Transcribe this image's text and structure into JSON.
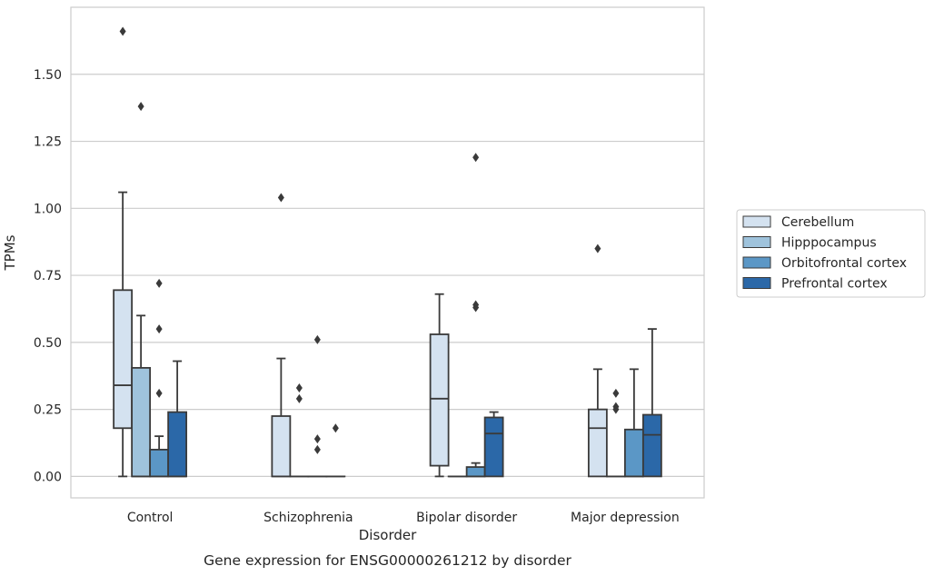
{
  "chart_data": {
    "type": "box",
    "xlabel": "Disorder",
    "ylabel": "TPMs",
    "caption": "Gene expression for ENSG00000261212 by disorder",
    "ylim": [
      -0.08,
      1.75
    ],
    "yticks": [
      0.0,
      0.25,
      0.5,
      0.75,
      1.0,
      1.25,
      1.5
    ],
    "ytick_labels": [
      "0.00",
      "0.25",
      "0.50",
      "0.75",
      "1.00",
      "1.25",
      "1.50"
    ],
    "grid": "horizontal",
    "legend_position": "right",
    "categories": [
      "Control",
      "Schizophrenia",
      "Bipolar disorder",
      "Major depression"
    ],
    "series": [
      {
        "name": "Cerebellum",
        "color": "#d4e2f0",
        "boxes": [
          {
            "whisker_low": 0.0,
            "q1": 0.18,
            "median": 0.34,
            "q3": 0.695,
            "whisker_high": 1.06,
            "outliers": [
              1.66
            ]
          },
          {
            "whisker_low": 0.0,
            "q1": 0.0,
            "median": 0.0,
            "q3": 0.225,
            "whisker_high": 0.44,
            "outliers": [
              1.04
            ]
          },
          {
            "whisker_low": 0.0,
            "q1": 0.04,
            "median": 0.29,
            "q3": 0.53,
            "whisker_high": 0.68,
            "outliers": []
          },
          {
            "whisker_low": 0.0,
            "q1": 0.0,
            "median": 0.18,
            "q3": 0.25,
            "whisker_high": 0.4,
            "outliers": [
              0.85
            ]
          }
        ]
      },
      {
        "name": "Hipppocampus",
        "color": "#9fc3dc",
        "boxes": [
          {
            "whisker_low": 0.0,
            "q1": 0.0,
            "median": 0.0,
            "q3": 0.405,
            "whisker_high": 0.6,
            "outliers": [
              1.38
            ]
          },
          {
            "whisker_low": 0.0,
            "q1": 0.0,
            "median": 0.0,
            "q3": 0.0,
            "whisker_high": 0.0,
            "outliers": [
              0.33,
              0.29
            ]
          },
          {
            "whisker_low": 0.0,
            "q1": 0.0,
            "median": 0.0,
            "q3": 0.0,
            "whisker_high": 0.0,
            "outliers": []
          },
          {
            "whisker_low": 0.0,
            "q1": 0.0,
            "median": 0.0,
            "q3": 0.0,
            "whisker_high": 0.0,
            "outliers": [
              0.31,
              0.26,
              0.25
            ]
          }
        ]
      },
      {
        "name": "Orbitofrontal cortex",
        "color": "#5b97c6",
        "boxes": [
          {
            "whisker_low": 0.0,
            "q1": 0.0,
            "median": 0.0,
            "q3": 0.1,
            "whisker_high": 0.15,
            "outliers": [
              0.72,
              0.55,
              0.31
            ]
          },
          {
            "whisker_low": 0.0,
            "q1": 0.0,
            "median": 0.0,
            "q3": 0.0,
            "whisker_high": 0.0,
            "outliers": [
              0.51,
              0.14,
              0.1
            ]
          },
          {
            "whisker_low": 0.0,
            "q1": 0.0,
            "median": 0.0,
            "q3": 0.035,
            "whisker_high": 0.05,
            "outliers": [
              1.19,
              0.64,
              0.63
            ]
          },
          {
            "whisker_low": 0.0,
            "q1": 0.0,
            "median": 0.0,
            "q3": 0.175,
            "whisker_high": 0.4,
            "outliers": []
          }
        ]
      },
      {
        "name": "Prefrontal cortex",
        "color": "#2b68a8",
        "boxes": [
          {
            "whisker_low": 0.0,
            "q1": 0.0,
            "median": 0.0,
            "q3": 0.24,
            "whisker_high": 0.43,
            "outliers": []
          },
          {
            "whisker_low": 0.0,
            "q1": 0.0,
            "median": 0.0,
            "q3": 0.0,
            "whisker_high": 0.0,
            "outliers": [
              0.18
            ]
          },
          {
            "whisker_low": 0.0,
            "q1": 0.0,
            "median": 0.16,
            "q3": 0.22,
            "whisker_high": 0.24,
            "outliers": []
          },
          {
            "whisker_low": 0.0,
            "q1": 0.0,
            "median": 0.155,
            "q3": 0.23,
            "whisker_high": 0.55,
            "outliers": []
          }
        ]
      }
    ]
  }
}
